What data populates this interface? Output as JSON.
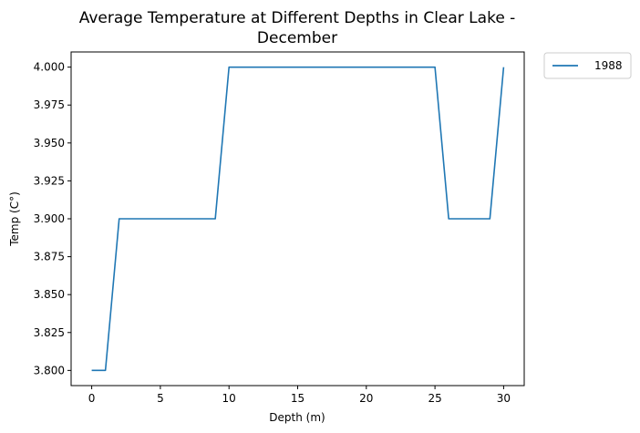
{
  "chart_data": {
    "type": "line",
    "title": "Average Temperature at Different Depths in Clear Lake - December",
    "title_lines": [
      "Average Temperature at Different Depths in Clear Lake -",
      "December"
    ],
    "xlabel": "Depth (m)",
    "ylabel": "Temp (C°)",
    "xlim": [
      -1.5,
      31.5
    ],
    "ylim": [
      3.79,
      4.01
    ],
    "xticks": [
      0,
      5,
      10,
      15,
      20,
      25,
      30
    ],
    "xtick_labels": [
      "0",
      "5",
      "10",
      "15",
      "20",
      "25",
      "30"
    ],
    "yticks": [
      3.8,
      3.825,
      3.85,
      3.875,
      3.9,
      3.925,
      3.95,
      3.975,
      4.0
    ],
    "ytick_labels": [
      "3.800",
      "3.825",
      "3.850",
      "3.875",
      "3.900",
      "3.925",
      "3.950",
      "3.975",
      "4.000"
    ],
    "grid": false,
    "legend_position": "outside-top-right",
    "x": [
      0,
      1,
      2,
      3,
      4,
      5,
      6,
      7,
      8,
      9,
      10,
      11,
      12,
      13,
      14,
      15,
      16,
      17,
      18,
      19,
      20,
      21,
      22,
      23,
      24,
      25,
      26,
      27,
      28,
      29,
      30
    ],
    "series": [
      {
        "name": "1988",
        "color": "#1f77b4",
        "values": [
          3.8,
          3.8,
          3.9,
          3.9,
          3.9,
          3.9,
          3.9,
          3.9,
          3.9,
          3.9,
          4.0,
          4.0,
          4.0,
          4.0,
          4.0,
          4.0,
          4.0,
          4.0,
          4.0,
          4.0,
          4.0,
          4.0,
          4.0,
          4.0,
          4.0,
          4.0,
          3.9,
          3.9,
          3.9,
          3.9,
          4.0
        ]
      }
    ]
  }
}
